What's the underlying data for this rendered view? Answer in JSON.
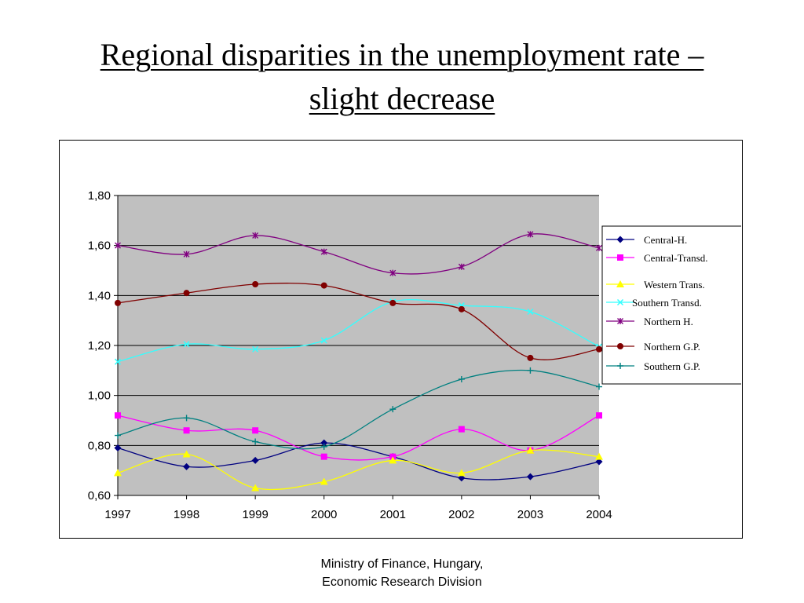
{
  "slide": {
    "title_line1": "Regional disparities in the unemployment rate –",
    "title_line2": "slight decrease",
    "footer_line1": "Ministry of Finance, Hungary,",
    "footer_line2": "Economic Research Division"
  },
  "chart_data": {
    "type": "line",
    "title": "",
    "xlabel": "",
    "ylabel": "",
    "x": [
      "1997",
      "1998",
      "1999",
      "2000",
      "2001",
      "2002",
      "2003",
      "2004"
    ],
    "ylim": [
      0.6,
      1.8
    ],
    "yticks": [
      "0,60",
      "0,80",
      "1,00",
      "1,20",
      "1,40",
      "1,60",
      "1,80"
    ],
    "grid": "horizontal",
    "plot_background": "#c0c0c0",
    "legend_position": "right",
    "series": [
      {
        "name": "Central-H.",
        "color": "#000080",
        "marker": "diamond",
        "values": [
          0.79,
          0.715,
          0.74,
          0.81,
          0.755,
          0.67,
          0.675,
          0.735
        ]
      },
      {
        "name": "Central-Transd.",
        "color": "#ff00ff",
        "marker": "square",
        "values": [
          0.92,
          0.86,
          0.86,
          0.755,
          0.755,
          0.865,
          0.78,
          0.92
        ]
      },
      {
        "name": "Western Trans.",
        "color": "#ffff00",
        "marker": "triangle",
        "values": [
          0.69,
          0.765,
          0.63,
          0.655,
          0.74,
          0.69,
          0.78,
          0.755
        ]
      },
      {
        "name": "Southern Transd.",
        "color": "#33ffff",
        "marker": "x",
        "values": [
          1.135,
          1.205,
          1.185,
          1.22,
          1.375,
          1.36,
          1.335,
          1.195
        ]
      },
      {
        "name": "Northern H.",
        "color": "#800080",
        "marker": "star",
        "values": [
          1.6,
          1.565,
          1.64,
          1.575,
          1.49,
          1.515,
          1.645,
          1.59
        ]
      },
      {
        "name": "Northern G.P.",
        "color": "#800000",
        "marker": "circle",
        "values": [
          1.37,
          1.41,
          1.445,
          1.44,
          1.37,
          1.345,
          1.15,
          1.185
        ]
      },
      {
        "name": "Southern G.P.",
        "color": "#008080",
        "marker": "plus",
        "values": [
          0.84,
          0.91,
          0.815,
          0.795,
          0.945,
          1.065,
          1.1,
          1.035
        ]
      }
    ]
  }
}
